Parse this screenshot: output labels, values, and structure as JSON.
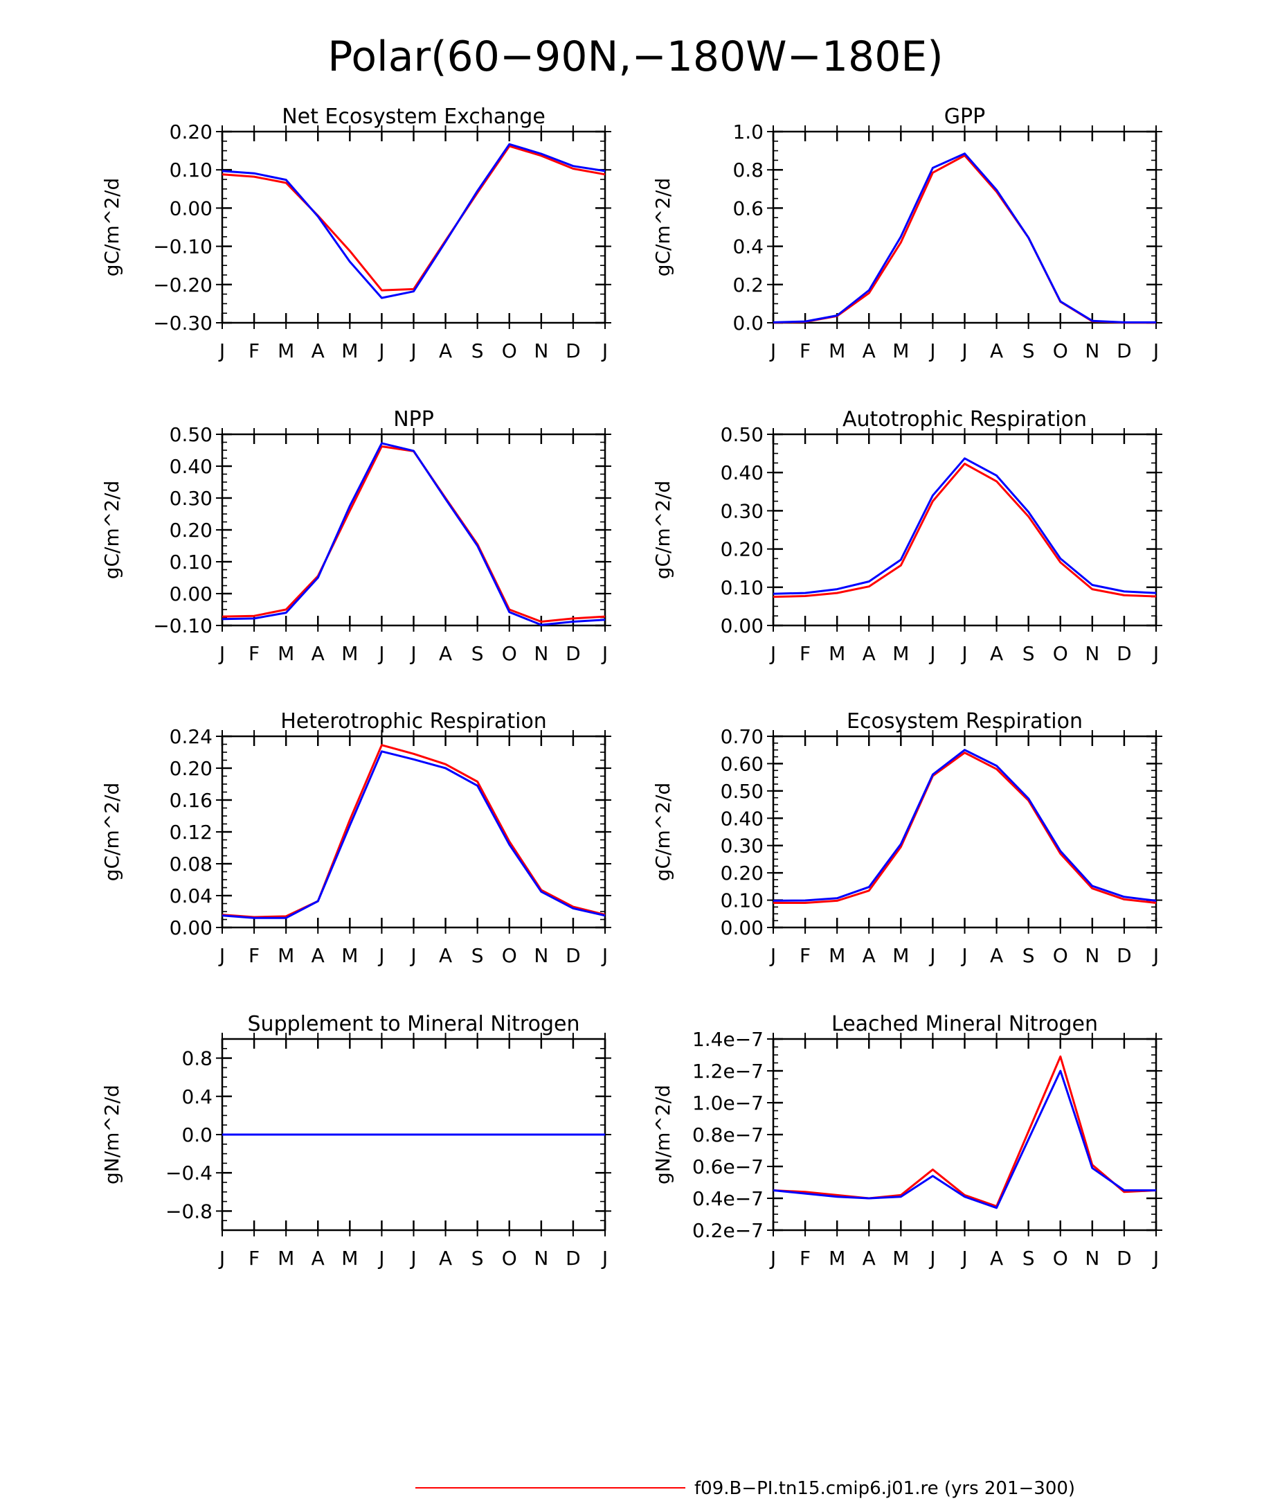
{
  "title": "Polar(60−90N,−180W−180E)",
  "colors": {
    "red": "#ff0000",
    "blue": "#0000ff",
    "axis": "#000000"
  },
  "months": [
    "J",
    "F",
    "M",
    "A",
    "M",
    "J",
    "J",
    "A",
    "S",
    "O",
    "N",
    "D",
    "J"
  ],
  "legend": [
    {
      "label": "f09.B−PI.tn15.cmip6.j01.re (yrs 201−300)",
      "color": "#ff0000"
    }
  ],
  "chart_data": [
    {
      "type": "line",
      "title": "Net Ecosystem Exchange",
      "ylabel": "gC/m^2/d",
      "x": [
        "J",
        "F",
        "M",
        "A",
        "M",
        "J",
        "J",
        "A",
        "S",
        "O",
        "N",
        "D",
        "J"
      ],
      "ylim": [
        -0.3,
        0.2
      ],
      "yticks": [
        "−0.30",
        "−0.20",
        "−0.10",
        "0.00",
        "0.10",
        "0.20"
      ],
      "series": [
        {
          "color": "#ff0000",
          "values": [
            0.088,
            0.082,
            0.066,
            -0.02,
            -0.112,
            -0.215,
            -0.212,
            -0.085,
            0.04,
            0.162,
            0.137,
            0.103,
            0.088
          ]
        },
        {
          "color": "#0000ff",
          "values": [
            0.097,
            0.091,
            0.074,
            -0.022,
            -0.14,
            -0.235,
            -0.218,
            -0.088,
            0.045,
            0.167,
            0.142,
            0.11,
            0.097
          ]
        }
      ]
    },
    {
      "type": "line",
      "title": "GPP",
      "ylabel": "gC/m^2/d",
      "x": [
        "J",
        "F",
        "M",
        "A",
        "M",
        "J",
        "J",
        "A",
        "S",
        "O",
        "N",
        "D",
        "J"
      ],
      "ylim": [
        0.0,
        1.0
      ],
      "yticks": [
        "0.0",
        "0.2",
        "0.4",
        "0.6",
        "0.8",
        "1.0"
      ],
      "series": [
        {
          "color": "#ff0000",
          "values": [
            0.001,
            0.005,
            0.035,
            0.155,
            0.42,
            0.785,
            0.875,
            0.685,
            0.445,
            0.11,
            0.008,
            0.001,
            0.001
          ]
        },
        {
          "color": "#0000ff",
          "values": [
            0.002,
            0.007,
            0.038,
            0.17,
            0.45,
            0.81,
            0.885,
            0.695,
            0.445,
            0.112,
            0.01,
            0.002,
            0.002
          ]
        }
      ]
    },
    {
      "type": "line",
      "title": "NPP",
      "ylabel": "gC/m^2/d",
      "x": [
        "J",
        "F",
        "M",
        "A",
        "M",
        "J",
        "J",
        "A",
        "S",
        "O",
        "N",
        "D",
        "J"
      ],
      "ylim": [
        -0.1,
        0.5
      ],
      "yticks": [
        "−0.10",
        "0.00",
        "0.10",
        "0.20",
        "0.30",
        "0.40",
        "0.50"
      ],
      "series": [
        {
          "color": "#ff0000",
          "values": [
            -0.072,
            -0.07,
            -0.05,
            0.055,
            0.26,
            0.462,
            0.447,
            0.3,
            0.155,
            -0.05,
            -0.088,
            -0.078,
            -0.072
          ]
        },
        {
          "color": "#0000ff",
          "values": [
            -0.08,
            -0.078,
            -0.06,
            0.05,
            0.275,
            0.472,
            0.448,
            0.297,
            0.15,
            -0.058,
            -0.098,
            -0.088,
            -0.082
          ]
        }
      ]
    },
    {
      "type": "line",
      "title": "Autotrophic Respiration",
      "ylabel": "gC/m^2/d",
      "x": [
        "J",
        "F",
        "M",
        "A",
        "M",
        "J",
        "J",
        "A",
        "S",
        "O",
        "N",
        "D",
        "J"
      ],
      "ylim": [
        0.0,
        0.5
      ],
      "yticks": [
        "0.00",
        "0.10",
        "0.20",
        "0.30",
        "0.40",
        "0.50"
      ],
      "series": [
        {
          "color": "#ff0000",
          "values": [
            0.075,
            0.077,
            0.085,
            0.102,
            0.157,
            0.325,
            0.423,
            0.377,
            0.285,
            0.165,
            0.095,
            0.079,
            0.076
          ]
        },
        {
          "color": "#0000ff",
          "values": [
            0.083,
            0.085,
            0.095,
            0.115,
            0.172,
            0.34,
            0.437,
            0.392,
            0.297,
            0.175,
            0.106,
            0.089,
            0.085
          ]
        }
      ]
    },
    {
      "type": "line",
      "title": "Heterotrophic Respiration",
      "ylabel": "gC/m^2/d",
      "x": [
        "J",
        "F",
        "M",
        "A",
        "M",
        "J",
        "J",
        "A",
        "S",
        "O",
        "N",
        "D",
        "J"
      ],
      "ylim": [
        0.0,
        0.24
      ],
      "yticks": [
        "0.00",
        "0.04",
        "0.08",
        "0.12",
        "0.16",
        "0.20",
        "0.24"
      ],
      "series": [
        {
          "color": "#ff0000",
          "values": [
            0.016,
            0.013,
            0.014,
            0.033,
            0.135,
            0.229,
            0.218,
            0.205,
            0.183,
            0.108,
            0.047,
            0.026,
            0.016
          ]
        },
        {
          "color": "#0000ff",
          "values": [
            0.015,
            0.012,
            0.012,
            0.033,
            0.128,
            0.221,
            0.211,
            0.2,
            0.178,
            0.104,
            0.045,
            0.024,
            0.015
          ]
        }
      ]
    },
    {
      "type": "line",
      "title": "Ecosystem Respiration",
      "ylabel": "gC/m^2/d",
      "x": [
        "J",
        "F",
        "M",
        "A",
        "M",
        "J",
        "J",
        "A",
        "S",
        "O",
        "N",
        "D",
        "J"
      ],
      "ylim": [
        0.0,
        0.7
      ],
      "yticks": [
        "0.00",
        "0.10",
        "0.20",
        "0.30",
        "0.40",
        "0.50",
        "0.60",
        "0.70"
      ],
      "series": [
        {
          "color": "#ff0000",
          "values": [
            0.09,
            0.09,
            0.098,
            0.135,
            0.295,
            0.555,
            0.64,
            0.58,
            0.465,
            0.27,
            0.143,
            0.103,
            0.09
          ]
        },
        {
          "color": "#0000ff",
          "values": [
            0.098,
            0.099,
            0.107,
            0.148,
            0.305,
            0.56,
            0.65,
            0.592,
            0.472,
            0.28,
            0.152,
            0.112,
            0.098
          ]
        }
      ]
    },
    {
      "type": "line",
      "title": "Supplement to Mineral Nitrogen",
      "ylabel": "gN/m^2/d",
      "x": [
        "J",
        "F",
        "M",
        "A",
        "M",
        "J",
        "J",
        "A",
        "S",
        "O",
        "N",
        "D",
        "J"
      ],
      "ylim": [
        -1.0,
        1.0
      ],
      "yticks": [
        "−0.8",
        "−0.4",
        "0.0",
        "0.4",
        "0.8"
      ],
      "ytick_values": [
        -0.8,
        -0.4,
        0.0,
        0.4,
        0.8
      ],
      "series": [
        {
          "color": "#ff0000",
          "values": [
            0,
            0,
            0,
            0,
            0,
            0,
            0,
            0,
            0,
            0,
            0,
            0,
            0
          ]
        },
        {
          "color": "#0000ff",
          "values": [
            0,
            0,
            0,
            0,
            0,
            0,
            0,
            0,
            0,
            0,
            0,
            0,
            0
          ]
        }
      ]
    },
    {
      "type": "line",
      "title": "Leached Mineral Nitrogen",
      "ylabel": "gN/m^2/d",
      "x": [
        "J",
        "F",
        "M",
        "A",
        "M",
        "J",
        "J",
        "A",
        "S",
        "O",
        "N",
        "D",
        "J"
      ],
      "ylim": [
        2e-08,
        1.4e-07
      ],
      "yticks": [
        "0.2e−7",
        "0.4e−7",
        "0.6e−7",
        "0.8e−7",
        "1.0e−7",
        "1.2e−7",
        "1.4e−7"
      ],
      "series": [
        {
          "color": "#ff0000",
          "values": [
            4.5e-08,
            4.4e-08,
            4.2e-08,
            4e-08,
            4.2e-08,
            5.8e-08,
            4.2e-08,
            3.5e-08,
            8.2e-08,
            1.29e-07,
            6.1e-08,
            4.4e-08,
            4.5e-08
          ]
        },
        {
          "color": "#0000ff",
          "values": [
            4.5e-08,
            4.3e-08,
            4.1e-08,
            4e-08,
            4.1e-08,
            5.4e-08,
            4.1e-08,
            3.4e-08,
            7.7e-08,
            1.2e-07,
            5.9e-08,
            4.5e-08,
            4.5e-08
          ]
        }
      ]
    }
  ]
}
